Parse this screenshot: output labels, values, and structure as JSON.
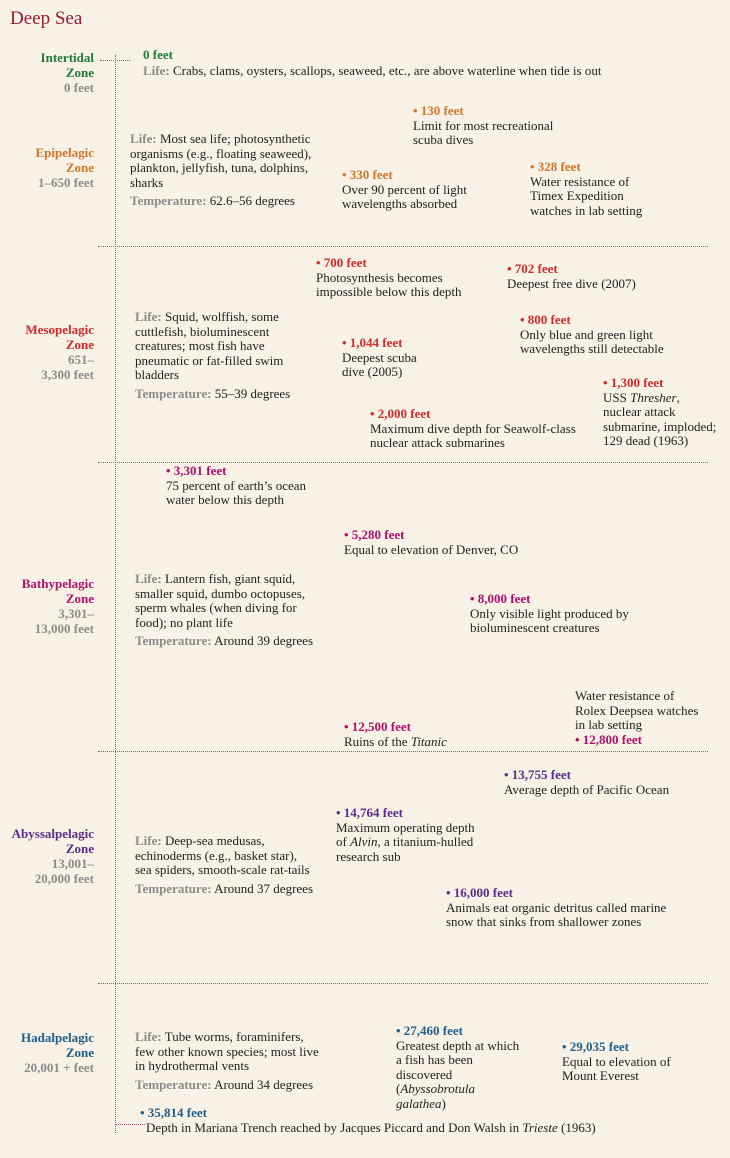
{
  "title": "Deep Sea",
  "colors": {
    "title": "#9a1832",
    "intertidal": "#1f7a3a",
    "epipelagic": "#d2762a",
    "mesopelagic": "#d42a2a",
    "bathypelagic": "#b3106b",
    "abyssalpelagic": "#5a2d8c",
    "hadalpelagic": "#1f5f8a",
    "range": "#8c8c8c",
    "guide": "#b04a58"
  },
  "labels": {
    "life": "Life:",
    "temperature": "Temperature:"
  },
  "zones": [
    {
      "name1": "Intertidal",
      "name2": "Zone",
      "range1": "0 feet",
      "range2": "",
      "life": "Crabs, clams, oysters, scallops, seaweed, etc., are above waterline when tide is out",
      "temperature": ""
    },
    {
      "name1": "Epipelagic",
      "name2": "Zone",
      "range1": "1–650 feet",
      "range2": "",
      "life": "Most sea life; photosynthetic organisms (e.g., floating seaweed), plankton, jellyfish, tuna, dolphins, sharks",
      "temperature": "62.6–56 degrees"
    },
    {
      "name1": "Mesopelagic",
      "name2": "Zone",
      "range1": "651–",
      "range2": "3,300 feet",
      "life": "Squid, wolffish, some cuttlefish, bioluminescent creatures; most fish have pneumatic or fat-filled swim bladders",
      "temperature": "55–39 degrees"
    },
    {
      "name1": "Bathypelagic",
      "name2": "Zone",
      "range1": "3,301–",
      "range2": "13,000 feet",
      "life": "Lantern fish, giant squid, smaller squid, dumbo octopuses, sperm whales (when diving for food); no plant life",
      "temperature": "Around 39 degrees"
    },
    {
      "name1": "Abyssalpelagic",
      "name2": "Zone",
      "range1": "13,001–",
      "range2": "20,000 feet",
      "life": "Deep-sea medusas, echinoderms (e.g., basket star), sea spiders, smooth-scale rat-tails",
      "temperature": "Around 37 degrees"
    },
    {
      "name1": "Hadalpelagic",
      "name2": "Zone",
      "range1": "20,001 + feet",
      "range2": "",
      "life": "Tube worms, foraminifers, few other known species; most live in hydrothermal vents",
      "temperature": "Around 34 degrees"
    }
  ],
  "annotations": {
    "a0": {
      "depth": "0 feet"
    },
    "a130": {
      "depth": "• 130 feet",
      "text": "Limit for most recreational scuba dives"
    },
    "a330": {
      "depth": "• 330 feet",
      "text": "Over 90 percent of light wavelengths absorbed"
    },
    "a328": {
      "depth": "• 328 feet",
      "text": "Water resistance of Timex Expedition watches in lab setting"
    },
    "a700": {
      "depth": "• 700 feet",
      "text": "Photosynthesis becomes impossible below this depth"
    },
    "a702": {
      "depth": "• 702 feet",
      "text": "Deepest free dive (2007)"
    },
    "a800": {
      "depth": "• 800 feet",
      "text": "Only blue and green light wavelengths still detectable"
    },
    "a1044": {
      "depth": "• 1,044 feet",
      "text": "Deepest scuba dive (2005)"
    },
    "a1300": {
      "depth": "• 1,300 feet",
      "pre": "USS ",
      "ital": "Thresher",
      "text": ", nuclear attack submarine, imploded; 129 dead (1963)"
    },
    "a2000": {
      "depth": "• 2,000 feet",
      "text": "Maximum dive depth for Seawolf-class nuclear attack submarines"
    },
    "a3301": {
      "depth": "• 3,301 feet",
      "text": "75 percent of earth’s ocean water below this depth"
    },
    "a5280": {
      "depth": "• 5,280 feet",
      "text": "Equal to elevation of Denver, CO"
    },
    "a8000": {
      "depth": "• 8,000 feet",
      "text": "Only visible light produced by bioluminescent creatures"
    },
    "a12500": {
      "depth": "• 12,500 feet",
      "pre": "Ruins of the ",
      "ital": "Titanic"
    },
    "a12800": {
      "depth": "• 12,800 feet",
      "text": "Water resistance of Rolex Deepsea watches in lab setting"
    },
    "a13755": {
      "depth": "• 13,755 feet",
      "text": "Average depth of Pacific Ocean"
    },
    "a14764": {
      "depth": "• 14,764 feet",
      "pre": "Maximum operating depth of ",
      "ital": "Alvin",
      "text": ", a titanium-hulled research sub"
    },
    "a16000": {
      "depth": "• 16,000 feet",
      "text": "Animals eat organic detritus called marine snow that sinks from shallower zones"
    },
    "a27460": {
      "depth": "• 27,460 feet",
      "text": "Greatest depth at which a fish has been discovered",
      "ital": "Abyssobrotula galathea",
      "open": "(",
      "close": ")"
    },
    "a29035": {
      "depth": "• 29,035 feet",
      "text": "Equal to elevation of Mount Everest"
    },
    "a35814": {
      "depth": "• 35,814 feet",
      "pre": "Depth in Mariana Trench reached by Jacques Piccard and Don Walsh in ",
      "ital": "Trieste",
      "text": " (1963)"
    }
  }
}
